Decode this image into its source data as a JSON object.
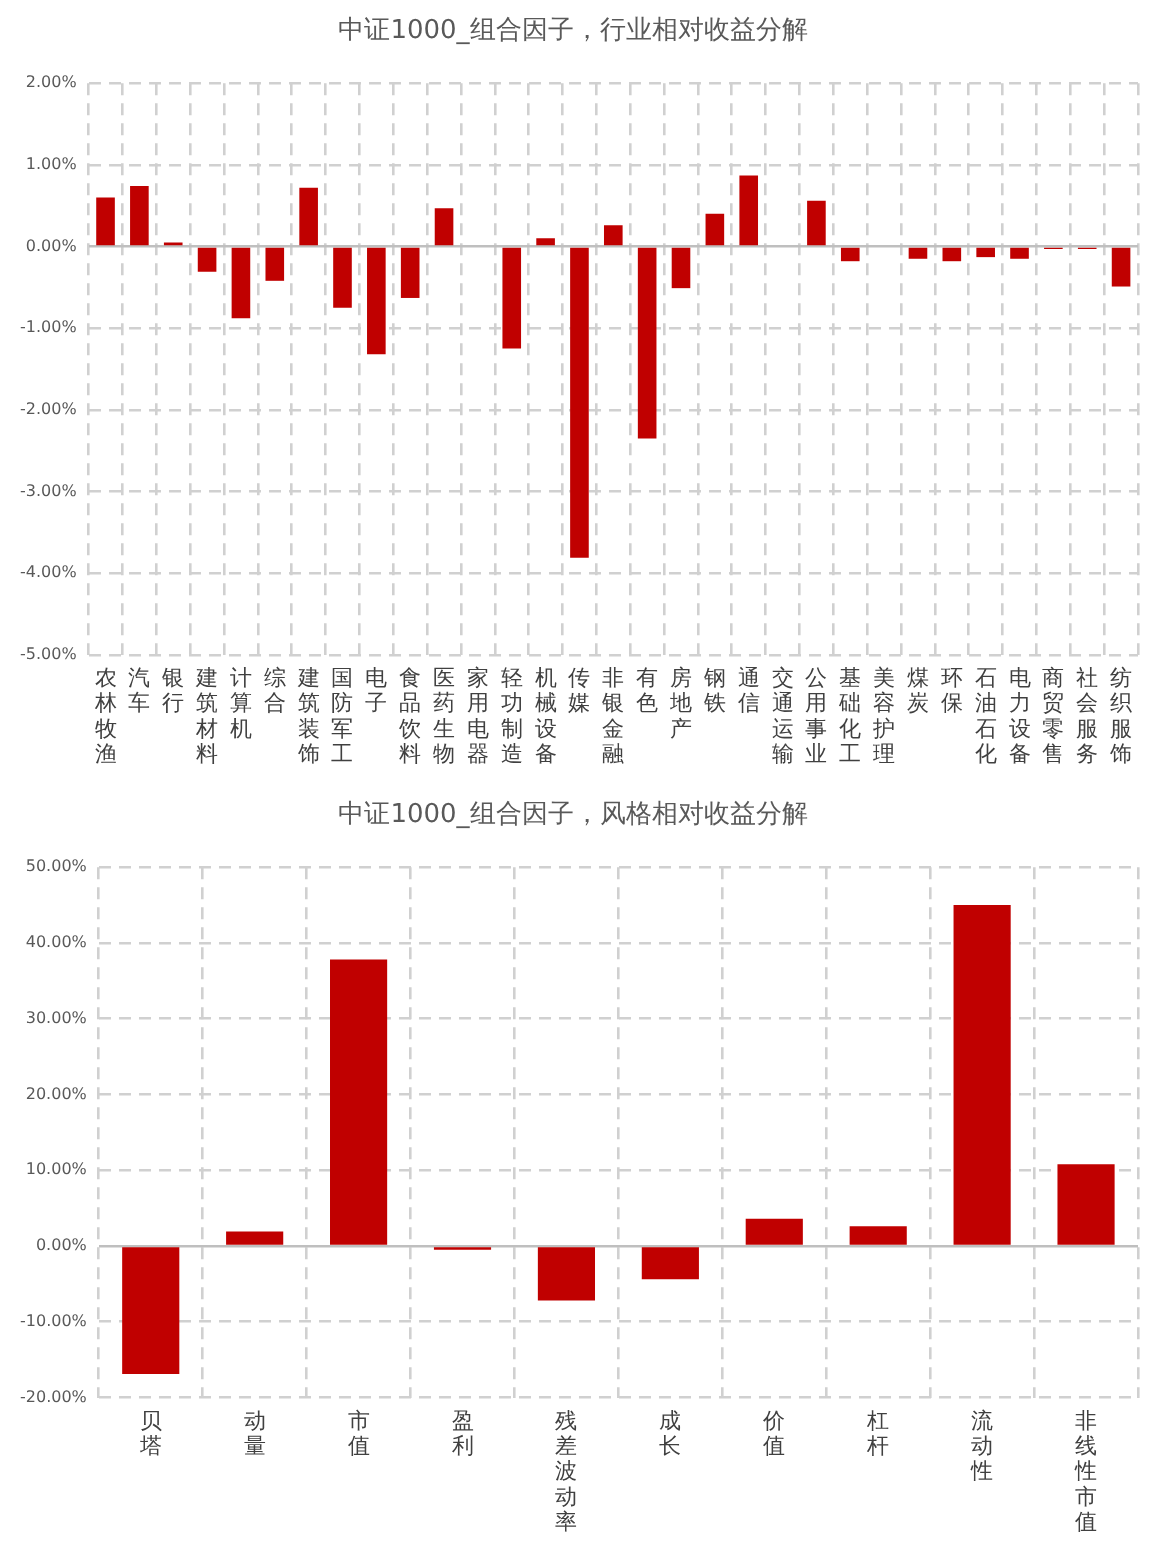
{
  "chart_data": [
    {
      "type": "bar",
      "title": "中证1000_组合因子，行业相对收益分解",
      "categories": [
        "农林牧渔",
        "汽车",
        "银行",
        "建筑材料",
        "计算机",
        "综合",
        "建筑装饰",
        "国防军工",
        "电子",
        "食品饮料",
        "医药生物",
        "家用电器",
        "轻功制造",
        "机械设备",
        "传媒",
        "非银金融",
        "有色",
        "房地产",
        "钢铁",
        "通信",
        "交通运输",
        "公用事业",
        "基础化工",
        "美容护理",
        "煤炭",
        "环保",
        "石油石化",
        "电力设备",
        "商贸零售",
        "社会服务",
        "纺织服饰"
      ],
      "values": [
        0.6,
        0.74,
        0.05,
        -0.31,
        -0.88,
        -0.42,
        0.72,
        -0.75,
        -1.32,
        -0.63,
        0.47,
        0,
        -1.25,
        0.1,
        -3.81,
        0.26,
        -2.35,
        -0.51,
        0.4,
        0.87,
        0,
        0.56,
        -0.18,
        0,
        -0.15,
        -0.18,
        -0.13,
        -0.15,
        -0.03,
        -0.03,
        -0.49
      ],
      "color": "#c00000",
      "ylim": [
        -5,
        2
      ],
      "yticks": [
        {
          "value": -5,
          "label": "-5.00%"
        },
        {
          "value": -4,
          "label": "-4.00%"
        },
        {
          "value": -3,
          "label": "-3.00%"
        },
        {
          "value": -2,
          "label": "-2.00%"
        },
        {
          "value": -1,
          "label": "-1.00%"
        },
        {
          "value": 0,
          "label": "0.00%"
        },
        {
          "value": 1,
          "label": "1.00%"
        },
        {
          "value": 2,
          "label": "2.00%"
        }
      ],
      "grid": true
    },
    {
      "type": "bar",
      "title": "中证1000_组合因子，风格相对收益分解",
      "categories": [
        "贝塔",
        "动量",
        "市值",
        "盈利",
        "残差波动率",
        "成长",
        "价值",
        "杠杆",
        "流动性",
        "非线性市值"
      ],
      "values": [
        -16.9,
        1.9,
        37.8,
        -0.5,
        -7.2,
        -4.4,
        3.6,
        2.6,
        45.0,
        10.8
      ],
      "color": "#c00000",
      "ylim": [
        -20,
        50
      ],
      "yticks": [
        {
          "value": -20,
          "label": "-20.00%"
        },
        {
          "value": -10,
          "label": "-10.00%"
        },
        {
          "value": 0,
          "label": "0.00%"
        },
        {
          "value": 10,
          "label": "10.00%"
        },
        {
          "value": 20,
          "label": "20.00%"
        },
        {
          "value": 30,
          "label": "30.00%"
        },
        {
          "value": 40,
          "label": "40.00%"
        },
        {
          "value": 50,
          "label": "50.00%"
        }
      ],
      "grid": true
    }
  ]
}
